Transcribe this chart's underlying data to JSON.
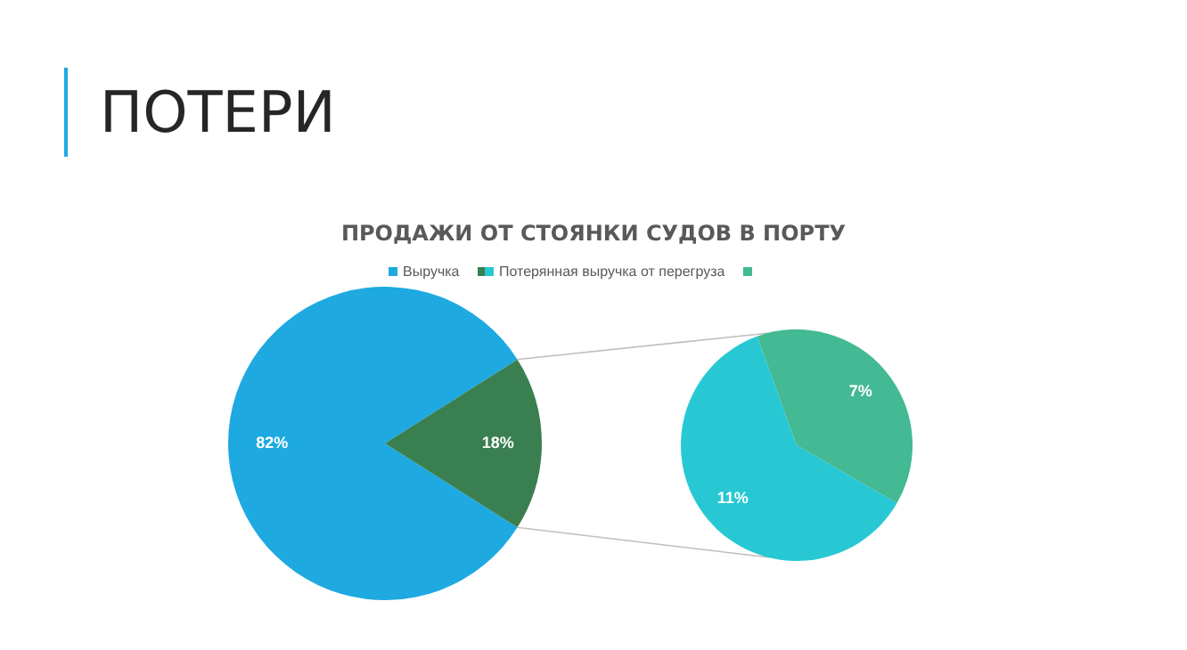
{
  "chart_data": [
    {
      "type": "pie",
      "title": "ПОТЕРИ",
      "subtitle": "ПРОДАЖИ ОТ СТОЯНКИ СУДОВ В ПОРТУ",
      "legend": "top",
      "categories": [
        "Выручка",
        null
      ],
      "values": [
        82,
        18
      ],
      "colors": [
        "#1ea9e1",
        "#3a7f50"
      ],
      "value_labels": [
        "82%",
        "18%"
      ]
    },
    {
      "type": "pie",
      "legend": "top",
      "categories": [
        "Потерянная выручка от перегруза",
        null
      ],
      "values": [
        11,
        7
      ],
      "colors": [
        "#27c8d4",
        "#43b994"
      ],
      "value_labels": [
        "11%",
        "7%"
      ]
    }
  ]
}
